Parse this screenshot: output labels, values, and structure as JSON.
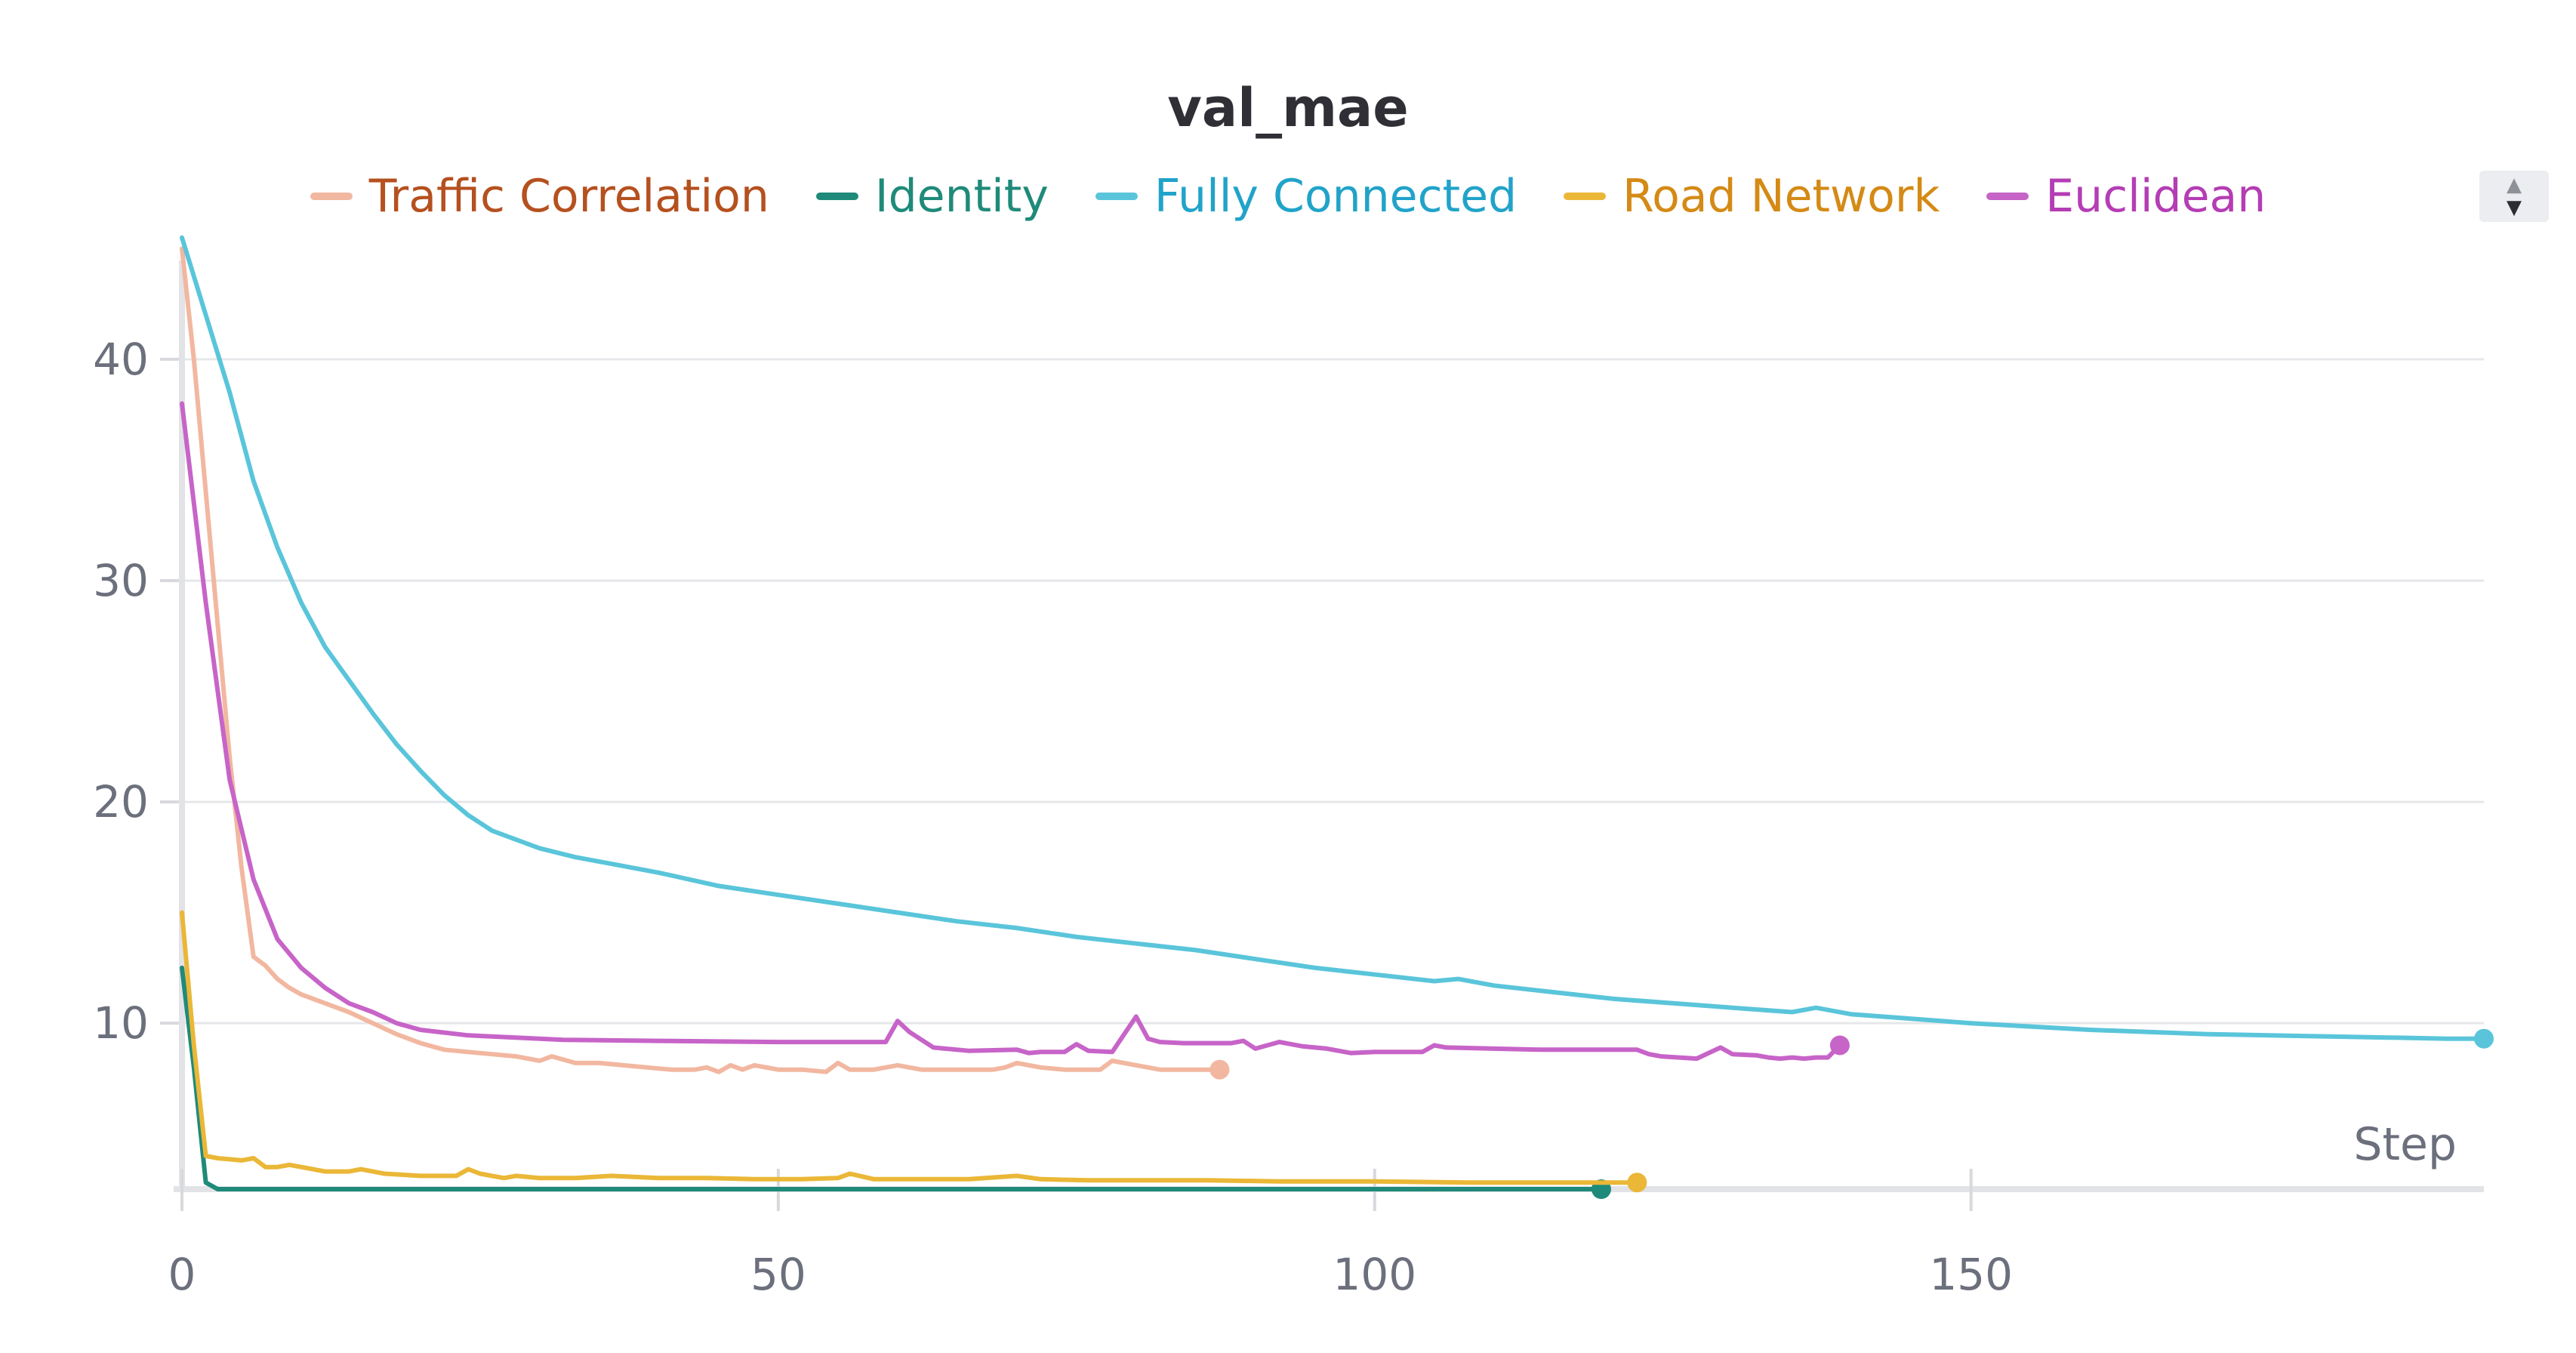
{
  "chart_data": {
    "type": "line",
    "title": "val_mae",
    "xlabel": "Step",
    "ylabel": "",
    "xlim": [
      0,
      193
    ],
    "ylim": [
      2.5,
      46
    ],
    "xticks": [
      0,
      50,
      100,
      150
    ],
    "yticks": [
      10,
      20,
      30,
      40
    ],
    "grid": true,
    "legend_position": "top-center",
    "series": [
      {
        "name": "Traffic Correlation",
        "color": "#f2b7a0",
        "label_color": "#b5501f",
        "x": [
          0,
          1,
          2,
          3,
          4,
          5,
          6,
          7,
          8,
          9,
          10,
          12,
          14,
          16,
          18,
          20,
          22,
          24,
          26,
          28,
          30,
          31,
          33,
          35,
          37,
          39,
          41,
          43,
          44,
          45,
          46,
          47,
          48,
          50,
          52,
          54,
          55,
          56,
          58,
          60,
          62,
          64,
          66,
          68,
          69,
          70,
          72,
          74,
          76,
          77,
          78,
          80,
          82,
          84,
          86,
          87
        ],
        "y": [
          45,
          40,
          34,
          28,
          22,
          17,
          13,
          12.6,
          12,
          11.6,
          11.3,
          10.9,
          10.5,
          10,
          9.5,
          9.1,
          8.8,
          8.7,
          8.6,
          8.5,
          8.3,
          8.5,
          8.2,
          8.2,
          8.1,
          8.0,
          7.9,
          7.9,
          8.0,
          7.8,
          8.1,
          7.9,
          8.1,
          7.9,
          7.9,
          7.8,
          8.2,
          7.9,
          7.9,
          8.1,
          7.9,
          7.9,
          7.9,
          7.9,
          8.0,
          8.2,
          8.0,
          7.9,
          7.9,
          7.9,
          8.3,
          8.1,
          7.9,
          7.9,
          7.9,
          7.9
        ]
      },
      {
        "name": "Identity",
        "color": "#1f8a7a",
        "label_color": "#1f8a7a",
        "x": [
          0,
          1,
          2,
          3,
          10,
          30,
          60,
          90,
          119
        ],
        "y": [
          12.5,
          8,
          2.8,
          2.5,
          2.5,
          2.5,
          2.5,
          2.5,
          2.5
        ]
      },
      {
        "name": "Fully Connected",
        "color": "#5ac5da",
        "label_color": "#21a3c9",
        "x": [
          0,
          2,
          4,
          6,
          8,
          10,
          12,
          14,
          16,
          18,
          20,
          22,
          24,
          26,
          28,
          30,
          33,
          36,
          40,
          45,
          50,
          55,
          60,
          65,
          70,
          75,
          80,
          85,
          90,
          95,
          100,
          105,
          107,
          110,
          115,
          120,
          125,
          130,
          135,
          137,
          140,
          145,
          150,
          155,
          160,
          165,
          170,
          175,
          180,
          185,
          190,
          193
        ],
        "y": [
          45.5,
          42,
          38.5,
          34.5,
          31.5,
          29,
          27,
          25.5,
          24,
          22.6,
          21.4,
          20.3,
          19.4,
          18.7,
          18.3,
          17.9,
          17.5,
          17.2,
          16.8,
          16.2,
          15.8,
          15.4,
          15.0,
          14.6,
          14.3,
          13.9,
          13.6,
          13.3,
          12.9,
          12.5,
          12.2,
          11.9,
          12.0,
          11.7,
          11.4,
          11.1,
          10.9,
          10.7,
          10.5,
          10.7,
          10.4,
          10.2,
          10.0,
          9.85,
          9.7,
          9.6,
          9.5,
          9.45,
          9.4,
          9.35,
          9.3,
          9.3
        ]
      },
      {
        "name": "Road Network",
        "color": "#eab737",
        "label_color": "#d48a15",
        "x": [
          0,
          1,
          2,
          3,
          5,
          6,
          7,
          8,
          9,
          10,
          12,
          14,
          15,
          17,
          20,
          23,
          24,
          25,
          27,
          28,
          30,
          33,
          36,
          40,
          44,
          48,
          52,
          55,
          56,
          58,
          62,
          66,
          70,
          72,
          76,
          80,
          86,
          92,
          100,
          108,
          116,
          122
        ],
        "y": [
          15,
          9,
          4,
          3.9,
          3.8,
          3.9,
          3.5,
          3.5,
          3.6,
          3.5,
          3.3,
          3.3,
          3.4,
          3.2,
          3.1,
          3.1,
          3.4,
          3.2,
          3.0,
          3.1,
          3.0,
          3.0,
          3.1,
          3.0,
          3.0,
          2.95,
          2.95,
          3.0,
          3.2,
          2.95,
          2.95,
          2.95,
          3.1,
          2.95,
          2.9,
          2.9,
          2.9,
          2.85,
          2.85,
          2.8,
          2.8,
          2.8
        ]
      },
      {
        "name": "Euclidean",
        "color": "#c764c8",
        "label_color": "#b43db4",
        "x": [
          0,
          2,
          4,
          6,
          8,
          10,
          12,
          14,
          16,
          18,
          20,
          24,
          28,
          32,
          40,
          50,
          59,
          60,
          61,
          63,
          66,
          70,
          71,
          72,
          74,
          75,
          76,
          78,
          79,
          80,
          81,
          82,
          84,
          86,
          88,
          89,
          90,
          92,
          94,
          96,
          98,
          100,
          102,
          104,
          105,
          106,
          110,
          114,
          118,
          122,
          123,
          124,
          127,
          129,
          130,
          132,
          133,
          134,
          135,
          136,
          137,
          138,
          139
        ],
        "y": [
          38,
          29,
          21,
          16.5,
          13.8,
          12.5,
          11.6,
          10.9,
          10.5,
          10.0,
          9.7,
          9.45,
          9.35,
          9.25,
          9.2,
          9.15,
          9.15,
          10.1,
          9.6,
          8.9,
          8.75,
          8.8,
          8.65,
          8.7,
          8.7,
          9.05,
          8.75,
          8.7,
          9.5,
          10.3,
          9.3,
          9.15,
          9.1,
          9.1,
          9.1,
          9.2,
          8.85,
          9.15,
          8.95,
          8.85,
          8.65,
          8.7,
          8.7,
          8.7,
          9.0,
          8.9,
          8.85,
          8.8,
          8.8,
          8.8,
          8.6,
          8.5,
          8.4,
          8.9,
          8.6,
          8.55,
          8.45,
          8.4,
          8.45,
          8.4,
          8.45,
          8.45,
          9.0
        ]
      }
    ]
  },
  "scroller": {
    "up_icon": "triangle-up-icon",
    "down_icon": "triangle-down-icon"
  }
}
